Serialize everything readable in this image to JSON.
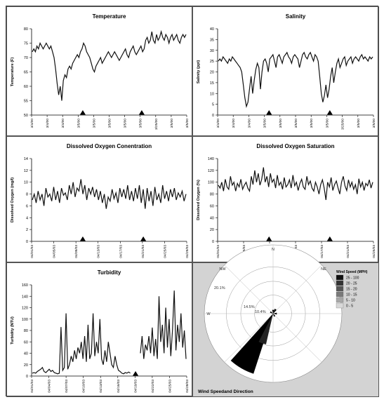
{
  "chart_data": [
    {
      "type": "line",
      "title": "Temperature",
      "ylabel": "Temperature (F)",
      "ylim": [
        50,
        80
      ],
      "yticks": [
        50,
        55,
        60,
        65,
        70,
        75,
        80
      ],
      "xticks": [
        "3/4/00",
        "3/4/00",
        "3/4/00",
        "3/5/00",
        "3/5/00",
        "3/5/00",
        "3/5/00",
        "3/5/00",
        "3/25/00",
        "3/5/00",
        "3/5/00"
      ],
      "markers": [
        0.33,
        0.71
      ],
      "series": [
        {
          "values": [
            72,
            73,
            72,
            74,
            73,
            75,
            74,
            73,
            74,
            75,
            74,
            73,
            74,
            72,
            70,
            66,
            61,
            57,
            60,
            55,
            62,
            64,
            63,
            66,
            67,
            66,
            68,
            69,
            70,
            71,
            70,
            72,
            73,
            75,
            74,
            72,
            71,
            70,
            68,
            66,
            65,
            67,
            68,
            69,
            70,
            68,
            69,
            70,
            71,
            72,
            71,
            70,
            71,
            72,
            71,
            70,
            69,
            70,
            71,
            72,
            73,
            71,
            70,
            72,
            73,
            74,
            72,
            71,
            72,
            73,
            74,
            72,
            73,
            76,
            77,
            75,
            76,
            79,
            76,
            75,
            78,
            76,
            77,
            79,
            77,
            76,
            78,
            77,
            75,
            77,
            78,
            76,
            77,
            78,
            76,
            75,
            77,
            78,
            77,
            78
          ]
        }
      ]
    },
    {
      "type": "line",
      "title": "Salinity",
      "ylabel": "Salinity (ppt)",
      "ylim": [
        0,
        40
      ],
      "yticks": [
        0,
        5,
        10,
        15,
        20,
        25,
        30,
        35,
        40
      ],
      "xticks": [
        "3/4/00",
        "3/4/00",
        "3/4/00",
        "3/5/00",
        "3/5/00",
        "3/5/00",
        "3/5/00",
        "3/5/00",
        "3/25/00",
        "3/5/00",
        "3/5/00"
      ],
      "markers": [
        0.33,
        0.72
      ],
      "series": [
        {
          "values": [
            25,
            26,
            25,
            27,
            26,
            25,
            24,
            26,
            25,
            27,
            26,
            25,
            24,
            23,
            22,
            20,
            14,
            8,
            4,
            6,
            12,
            18,
            10,
            16,
            21,
            24,
            22,
            12,
            20,
            25,
            26,
            24,
            20,
            26,
            27,
            28,
            25,
            22,
            27,
            28,
            26,
            24,
            27,
            28,
            29,
            27,
            26,
            24,
            27,
            28,
            27,
            26,
            22,
            25,
            28,
            29,
            27,
            26,
            28,
            29,
            27,
            25,
            28,
            27,
            25,
            18,
            10,
            6,
            9,
            14,
            8,
            12,
            18,
            22,
            15,
            20,
            24,
            26,
            22,
            24,
            26,
            27,
            23,
            25,
            26,
            27,
            24,
            26,
            27,
            26,
            25,
            27,
            28,
            26,
            27,
            26,
            25,
            27,
            26,
            27
          ]
        }
      ]
    },
    {
      "type": "line",
      "title": "Dissolved Oxygen Conentration",
      "ylabel": "Dissolved Oxygen (mg/l)",
      "ylim": [
        0,
        14
      ],
      "yticks": [
        0,
        2,
        4,
        6,
        8,
        10,
        12,
        14
      ],
      "xticks": [
        "04/01/03",
        "04/05/03",
        "04/09/03",
        "04/13/03",
        "04/17/03",
        "04/21/03",
        "04/25/03",
        "04/29/03"
      ],
      "markers": [
        0.33,
        0.72
      ],
      "series": [
        {
          "values": [
            7,
            8,
            6.5,
            8.5,
            7,
            8,
            6,
            9,
            7.5,
            8,
            6.8,
            9.2,
            7,
            8.5,
            6.5,
            9,
            7.8,
            8.2,
            7,
            9.5,
            8,
            10,
            7.5,
            9,
            8.5,
            10.5,
            8,
            9.5,
            7,
            9,
            8,
            9.2,
            7.5,
            8.8,
            7,
            8.5,
            6.5,
            8,
            5.5,
            7.5,
            6.8,
            8.8,
            7.2,
            8.2,
            6.5,
            9,
            7.5,
            8.8,
            7.2,
            9.5,
            7,
            8.5,
            6.8,
            9,
            7.2,
            9.5,
            6.5,
            8.8,
            5.5,
            9,
            6.8,
            8.5,
            6,
            9.2,
            7,
            8,
            6.5,
            9.5,
            7.2,
            8.5,
            6.8,
            8.8,
            7.5,
            9,
            7,
            8.2,
            7.5,
            8.5,
            6.8,
            8
          ]
        }
      ]
    },
    {
      "type": "line",
      "title": "Dissolved Oxygen Saturation",
      "ylabel": "Dissolved Oxygen (%)",
      "ylim": [
        0,
        140
      ],
      "yticks": [
        0,
        20,
        40,
        60,
        80,
        100,
        120,
        140
      ],
      "xticks": [
        "04/01/03",
        "04/05/03",
        "04/09/03",
        "04/13/03",
        "04/17/03",
        "04/21/03",
        "04/25/03"
      ],
      "markers": [
        0.33,
        0.72
      ],
      "series": [
        {
          "values": [
            95,
            90,
            100,
            85,
            105,
            92,
            88,
            110,
            95,
            100,
            85,
            98,
            92,
            105,
            88,
            95,
            100,
            90,
            85,
            110,
            96,
            120,
            100,
            115,
            95,
            105,
            125,
            100,
            110,
            92,
            115,
            100,
            105,
            90,
            112,
            95,
            100,
            88,
            108,
            92,
            96,
            104,
            90,
            112,
            94,
            100,
            86,
            98,
            105,
            92,
            88,
            110,
            96,
            102,
            90,
            85,
            100,
            92,
            80,
            96,
            104,
            90,
            70,
            100,
            92,
            108,
            86,
            96,
            102,
            90,
            80,
            100,
            110,
            94,
            86,
            104,
            92,
            100,
            88,
            96,
            80,
            106,
            92,
            100,
            86,
            98,
            94,
            104,
            90,
            100
          ]
        }
      ]
    },
    {
      "type": "line",
      "title": "Turbidity",
      "ylabel": "Turbidity (NTU)",
      "ylim": [
        0,
        160
      ],
      "yticks": [
        0,
        20,
        40,
        60,
        80,
        100,
        120,
        140,
        160
      ],
      "xticks": [
        "04/01/03",
        "04/04/03",
        "04/07/03",
        "04/10/03",
        "04/13/03",
        "04/16/03",
        "04/19/03",
        "04/22/03",
        "04/25/03",
        "04/28/03"
      ],
      "markers": [
        0.67
      ],
      "series": [
        {
          "values": [
            5,
            6,
            5,
            8,
            10,
            12,
            15,
            8,
            6,
            9,
            12,
            8,
            10,
            6,
            5,
            4,
            5,
            86,
            10,
            15,
            110,
            12,
            20,
            35,
            25,
            45,
            30,
            50,
            40,
            60,
            30,
            70,
            25,
            90,
            30,
            40,
            110,
            35,
            60,
            40,
            100,
            30,
            20,
            45,
            25,
            60,
            40,
            20,
            15,
            35,
            20,
            10,
            8,
            5,
            4,
            6,
            5,
            7,
            5,
            null,
            null,
            null,
            null,
            null,
            40,
            70,
            30,
            55,
            45,
            70,
            40,
            85,
            35,
            65,
            30,
            140,
            60,
            90,
            40,
            120,
            50,
            100,
            35,
            80,
            150,
            45,
            90,
            60,
            110,
            50,
            80,
            30
          ]
        }
      ]
    },
    {
      "type": "rose",
      "title": "Wind Speedand Direction",
      "legend_title": "Wind Speed (MPH)",
      "legend": [
        "25 - 100",
        "20 - 25",
        "15 - 20",
        "10 - 15",
        "5 - 10",
        "0 - 5"
      ],
      "legend_colors": [
        "#101010",
        "#333333",
        "#555555",
        "#7a7a7a",
        "#a8a8a8",
        "#d8d8d8"
      ],
      "directions": [
        "N",
        "NE",
        "W",
        "NW"
      ],
      "ring_labels": [
        "20.1%",
        "14.5%",
        "10.4%"
      ],
      "petals": [
        {
          "angle": 210,
          "span": 24,
          "value": 1.0
        },
        {
          "angle": 200,
          "span": 14,
          "value": 0.5
        },
        {
          "angle": 30,
          "span": 25,
          "value": 0.08
        },
        {
          "angle": 90,
          "span": 30,
          "value": 0.06
        },
        {
          "angle": 0,
          "span": 30,
          "value": 0.06
        },
        {
          "angle": 300,
          "span": 30,
          "value": 0.05
        },
        {
          "angle": 150,
          "span": 30,
          "value": 0.05
        }
      ]
    }
  ]
}
